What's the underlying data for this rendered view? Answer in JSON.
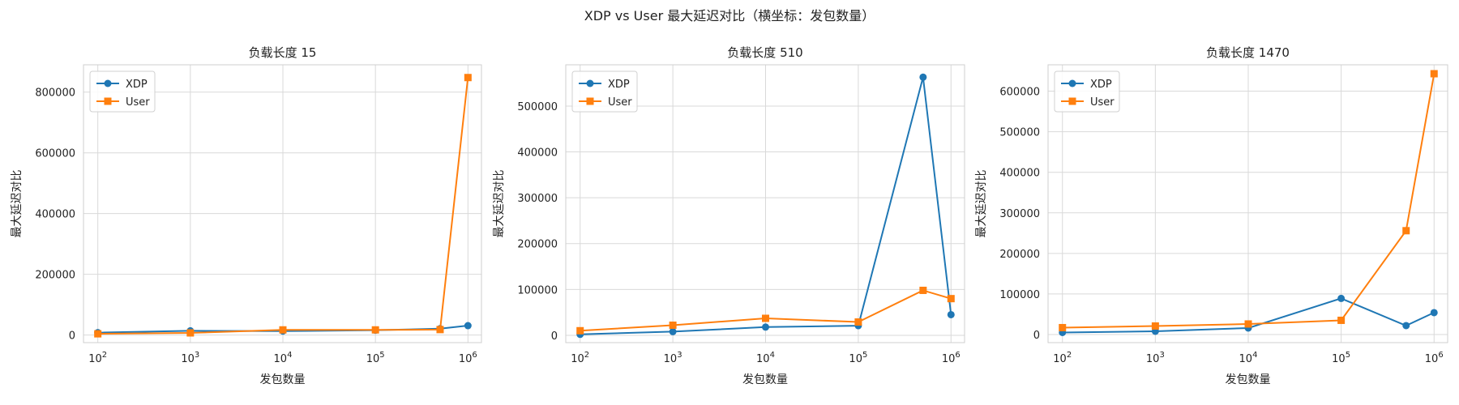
{
  "figure_title": "XDP vs User 最大延迟对比（横坐标：发包数量）",
  "colors": {
    "XDP": "#1f77b4",
    "User": "#ff7f0e",
    "grid": "#d9d9d9"
  },
  "chart_data": [
    {
      "type": "line",
      "title": "负载长度 15",
      "xlabel": "发包数量",
      "ylabel": "最大延迟对比",
      "xscale": "log",
      "x": [
        100,
        1000,
        10000,
        100000,
        500000,
        1000000
      ],
      "xlim": [
        70,
        1400000
      ],
      "xticks": [
        100,
        1000,
        10000,
        100000,
        1000000
      ],
      "xticklabels": [
        [
          "10",
          "2"
        ],
        [
          "10",
          "3"
        ],
        [
          "10",
          "4"
        ],
        [
          "10",
          "5"
        ],
        [
          "10",
          "6"
        ]
      ],
      "ylim": [
        -25000,
        890000
      ],
      "yticks": [
        0,
        200000,
        400000,
        600000,
        800000
      ],
      "grid": true,
      "legend_placement": "upper-left",
      "series": [
        {
          "name": "XDP",
          "marker": "circle",
          "values": [
            8000,
            14000,
            13000,
            16000,
            21000,
            31000
          ]
        },
        {
          "name": "User",
          "marker": "square",
          "values": [
            4000,
            7000,
            17000,
            17000,
            18000,
            848000
          ]
        }
      ]
    },
    {
      "type": "line",
      "title": "负载长度 510",
      "xlabel": "发包数量",
      "ylabel": "最大延迟对比",
      "xscale": "log",
      "x": [
        100,
        1000,
        10000,
        100000,
        500000,
        1000000
      ],
      "xlim": [
        70,
        1400000
      ],
      "xticks": [
        100,
        1000,
        10000,
        100000,
        1000000
      ],
      "xticklabels": [
        [
          "10",
          "2"
        ],
        [
          "10",
          "3"
        ],
        [
          "10",
          "4"
        ],
        [
          "10",
          "5"
        ],
        [
          "10",
          "6"
        ]
      ],
      "ylim": [
        -16000,
        590000
      ],
      "yticks": [
        0,
        100000,
        200000,
        300000,
        400000,
        500000
      ],
      "grid": true,
      "legend_placement": "upper-left",
      "series": [
        {
          "name": "XDP",
          "marker": "circle",
          "values": [
            2000,
            8000,
            18000,
            21000,
            563000,
            45000
          ]
        },
        {
          "name": "User",
          "marker": "square",
          "values": [
            10000,
            22000,
            37000,
            29000,
            98000,
            80000
          ]
        }
      ]
    },
    {
      "type": "line",
      "title": "负载长度 1470",
      "xlabel": "发包数量",
      "ylabel": "最大延迟对比",
      "xscale": "log",
      "x": [
        100,
        1000,
        10000,
        100000,
        500000,
        1000000
      ],
      "xlim": [
        70,
        1400000
      ],
      "xticks": [
        100,
        1000,
        10000,
        100000,
        1000000
      ],
      "xticklabels": [
        [
          "10",
          "2"
        ],
        [
          "10",
          "3"
        ],
        [
          "10",
          "4"
        ],
        [
          "10",
          "5"
        ],
        [
          "10",
          "6"
        ]
      ],
      "ylim": [
        -20000,
        665000
      ],
      "yticks": [
        0,
        100000,
        200000,
        300000,
        400000,
        500000,
        600000
      ],
      "grid": true,
      "legend_placement": "upper-left",
      "series": [
        {
          "name": "XDP",
          "marker": "circle",
          "values": [
            5000,
            8000,
            16000,
            89000,
            22000,
            54000
          ]
        },
        {
          "name": "User",
          "marker": "square",
          "values": [
            17000,
            21000,
            26000,
            35000,
            256000,
            643000
          ]
        }
      ]
    }
  ]
}
